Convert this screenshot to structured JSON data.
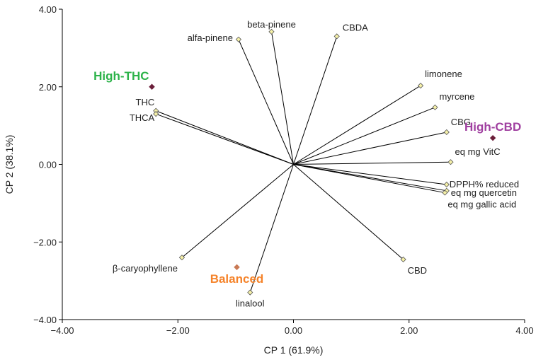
{
  "chart_data": {
    "type": "scatter",
    "subtype": "biplot",
    "xlabel": "CP 1 (61.9%)",
    "ylabel": "CP 2 (38.1%)",
    "xlim": [
      -4,
      4
    ],
    "ylim": [
      -4,
      4
    ],
    "x_ticks": [
      "−4.00",
      "−2.00",
      "0.00",
      "2.00",
      "4.00"
    ],
    "y_ticks": [
      "4.00",
      "2.00",
      "0.00",
      "−2.00",
      "−4.00"
    ],
    "x_tick_values": [
      -4,
      -2,
      0,
      2,
      4
    ],
    "y_tick_values": [
      4,
      2,
      0,
      -2,
      -4
    ],
    "vectors": [
      {
        "name": "beta-pinene",
        "x": -0.38,
        "y": 3.42
      },
      {
        "name": "alfa-pinene",
        "x": -0.95,
        "y": 3.22
      },
      {
        "name": "CBDA",
        "x": 0.75,
        "y": 3.3
      },
      {
        "name": "limonene",
        "x": 2.2,
        "y": 2.03
      },
      {
        "name": "myrcene",
        "x": 2.45,
        "y": 1.47
      },
      {
        "name": "CBG",
        "x": 2.65,
        "y": 0.83
      },
      {
        "name": "eq mg VitC",
        "x": 2.72,
        "y": 0.06
      },
      {
        "name": "DPPH% reduced",
        "x": 2.65,
        "y": -0.52
      },
      {
        "name": "eq mg quercetin",
        "x": 2.65,
        "y": -0.68
      },
      {
        "name": "eq mg gallic acid",
        "x": 2.62,
        "y": -0.73
      },
      {
        "name": "CBD",
        "x": 1.9,
        "y": -2.45
      },
      {
        "name": "linalool",
        "x": -0.75,
        "y": -3.3
      },
      {
        "name": "β-caryophyllene",
        "x": -1.93,
        "y": -2.4
      },
      {
        "name": "THC",
        "x": -2.38,
        "y": 1.38
      },
      {
        "name": "THCA",
        "x": -2.38,
        "y": 1.3
      }
    ],
    "groups": [
      {
        "name": "High-THC",
        "x": -2.45,
        "y": 2.0,
        "color": "#2db34a"
      },
      {
        "name": "High-CBD",
        "x": 3.45,
        "y": 0.68,
        "color": "#a040a0"
      },
      {
        "name": "Balanced",
        "x": -0.98,
        "y": -2.65,
        "color": "#f5832a"
      }
    ],
    "colors": {
      "vector_line": "#000000",
      "vector_marker_fill": "#f5f0a8",
      "group_marker": "#6b1f3a",
      "balanced_marker": "#c97a55"
    }
  }
}
